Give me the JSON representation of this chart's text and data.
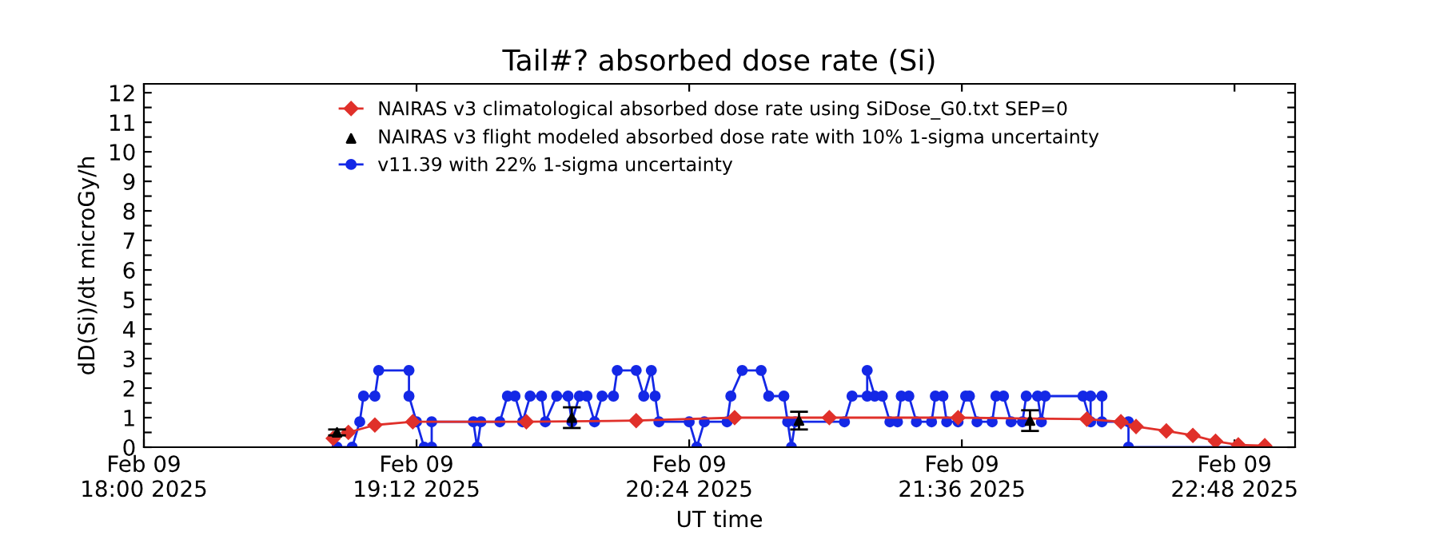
{
  "chart_data": {
    "type": "line",
    "title": "Tail#? absorbed dose rate (Si)",
    "xlabel": "UT time",
    "ylabel": "dD(Si)/dt microGy/h",
    "xlim": [
      "2025-02-09T18:00",
      "2025-02-09T23:04"
    ],
    "xticks": [
      {
        "value": "2025-02-09T18:00",
        "label": "Feb 09\n18:00 2025"
      },
      {
        "value": "2025-02-09T19:12",
        "label": "Feb 09\n19:12 2025"
      },
      {
        "value": "2025-02-09T20:24",
        "label": "Feb 09\n20:24 2025"
      },
      {
        "value": "2025-02-09T21:36",
        "label": "Feb 09\n21:36 2025"
      },
      {
        "value": "2025-02-09T22:48",
        "label": "Feb 09\n22:48 2025"
      }
    ],
    "ylim": [
      0,
      12.3
    ],
    "yticks": [
      0,
      {
        "value": 0.5,
        "label": null
      },
      1,
      {
        "value": 1.5,
        "label": null
      },
      2,
      {
        "value": 2.5,
        "label": null
      },
      3,
      {
        "value": 3.5,
        "label": null
      },
      4,
      {
        "value": 4.5,
        "label": null
      },
      5,
      {
        "value": 5.5,
        "label": null
      },
      6,
      {
        "value": 6.5,
        "label": null
      },
      7,
      {
        "value": 7.5,
        "label": null
      },
      8,
      {
        "value": 8.5,
        "label": null
      },
      9,
      {
        "value": 9.5,
        "label": null
      },
      10,
      {
        "value": 10.5,
        "label": null
      },
      11,
      {
        "value": 11.5,
        "label": null
      },
      12
    ],
    "grid": false,
    "legend": "top",
    "series": [
      {
        "name": "NAIRAS v3 climatological absorbed dose rate using SiDose_G0.txt SEP=0",
        "color": "#e0302a",
        "marker": "diamond",
        "x": [
          "2025-02-09T18:50",
          "2025-02-09T18:54",
          "2025-02-09T19:01",
          "2025-02-09T19:11",
          "2025-02-09T19:41",
          "2025-02-09T20:10",
          "2025-02-09T20:36",
          "2025-02-09T21:01",
          "2025-02-09T21:35",
          "2025-02-09T22:09",
          "2025-02-09T22:18",
          "2025-02-09T22:22",
          "2025-02-09T22:30",
          "2025-02-09T22:37",
          "2025-02-09T22:43",
          "2025-02-09T22:49",
          "2025-02-09T22:56"
        ],
        "values": [
          0.3,
          0.5,
          0.75,
          0.86,
          0.86,
          0.9,
          1.0,
          1.0,
          1.0,
          0.95,
          0.86,
          0.7,
          0.55,
          0.4,
          0.2,
          0.08,
          0.05
        ]
      },
      {
        "name": "NAIRAS v3 flight modeled absorbed dose rate with 10% 1-sigma uncertainty",
        "color": "#000000",
        "type": "scatter",
        "marker": "triangle",
        "x": [
          "2025-02-09T18:51",
          "2025-02-09T19:53",
          "2025-02-09T20:53",
          "2025-02-09T21:54"
        ],
        "values": [
          0.5,
          1.0,
          0.9,
          0.9
        ],
        "errors": [
          0.1,
          0.35,
          0.3,
          0.35
        ]
      },
      {
        "name": "v11.39 with 22% 1-sigma uncertainty",
        "color": "#1428e6",
        "marker": "circle",
        "x": [
          "2025-02-09T18:51",
          "2025-02-09T18:55",
          "2025-02-09T18:57",
          "2025-02-09T18:58",
          "2025-02-09T19:01",
          "2025-02-09T19:02",
          "2025-02-09T19:10",
          "2025-02-09T19:10",
          "2025-02-09T19:12",
          "2025-02-09T19:14",
          "2025-02-09T19:16",
          "2025-02-09T19:16",
          "2025-02-09T19:27",
          "2025-02-09T19:28",
          "2025-02-09T19:29",
          "2025-02-09T19:34",
          "2025-02-09T19:36",
          "2025-02-09T19:38",
          "2025-02-09T19:40",
          "2025-02-09T19:42",
          "2025-02-09T19:45",
          "2025-02-09T19:46",
          "2025-02-09T19:49",
          "2025-02-09T19:52",
          "2025-02-09T19:53",
          "2025-02-09T19:55",
          "2025-02-09T19:57",
          "2025-02-09T19:59",
          "2025-02-09T20:01",
          "2025-02-09T20:04",
          "2025-02-09T20:05",
          "2025-02-09T20:10",
          "2025-02-09T20:12",
          "2025-02-09T20:14",
          "2025-02-09T20:15",
          "2025-02-09T20:16",
          "2025-02-09T20:24",
          "2025-02-09T20:26",
          "2025-02-09T20:28",
          "2025-02-09T20:34",
          "2025-02-09T20:35",
          "2025-02-09T20:38",
          "2025-02-09T20:43",
          "2025-02-09T20:45",
          "2025-02-09T20:49",
          "2025-02-09T20:50",
          "2025-02-09T20:51",
          "2025-02-09T20:52",
          "2025-02-09T21:05",
          "2025-02-09T21:07",
          "2025-02-09T21:11",
          "2025-02-09T21:11",
          "2025-02-09T21:13",
          "2025-02-09T21:15",
          "2025-02-09T21:17",
          "2025-02-09T21:19",
          "2025-02-09T21:20",
          "2025-02-09T21:22",
          "2025-02-09T21:24",
          "2025-02-09T21:28",
          "2025-02-09T21:29",
          "2025-02-09T21:31",
          "2025-02-09T21:32",
          "2025-02-09T21:35",
          "2025-02-09T21:37",
          "2025-02-09T21:38",
          "2025-02-09T21:40",
          "2025-02-09T21:44",
          "2025-02-09T21:45",
          "2025-02-09T21:47",
          "2025-02-09T21:49",
          "2025-02-09T21:52",
          "2025-02-09T21:53",
          "2025-02-09T21:56",
          "2025-02-09T21:57",
          "2025-02-09T21:58",
          "2025-02-09T22:08",
          "2025-02-09T22:10",
          "2025-02-09T22:10",
          "2025-02-09T22:13",
          "2025-02-09T22:13",
          "2025-02-09T22:20",
          "2025-02-09T22:20",
          "2025-02-09T22:56"
        ],
        "values": [
          0,
          0,
          0.86,
          1.73,
          1.73,
          2.6,
          2.6,
          1.73,
          0.86,
          0,
          0,
          0.86,
          0.86,
          0,
          0.86,
          0.86,
          1.73,
          1.73,
          0.86,
          1.73,
          1.73,
          0.86,
          1.73,
          1.73,
          0.86,
          1.73,
          1.73,
          0.86,
          1.73,
          1.73,
          2.6,
          2.6,
          1.73,
          2.6,
          1.73,
          0.86,
          0.86,
          0,
          0.86,
          0.86,
          1.73,
          2.6,
          2.6,
          1.73,
          1.73,
          0.86,
          0,
          0.86,
          0.86,
          1.73,
          1.73,
          2.6,
          1.73,
          1.73,
          0.86,
          0.86,
          1.73,
          1.73,
          0.86,
          0.86,
          1.73,
          1.73,
          0.86,
          0.86,
          1.73,
          1.73,
          0.86,
          0.86,
          1.73,
          1.73,
          0.86,
          0.86,
          1.73,
          1.73,
          0.86,
          1.73,
          1.73,
          0.86,
          1.73,
          1.73,
          0.86,
          0.86,
          0,
          0
        ]
      }
    ]
  }
}
